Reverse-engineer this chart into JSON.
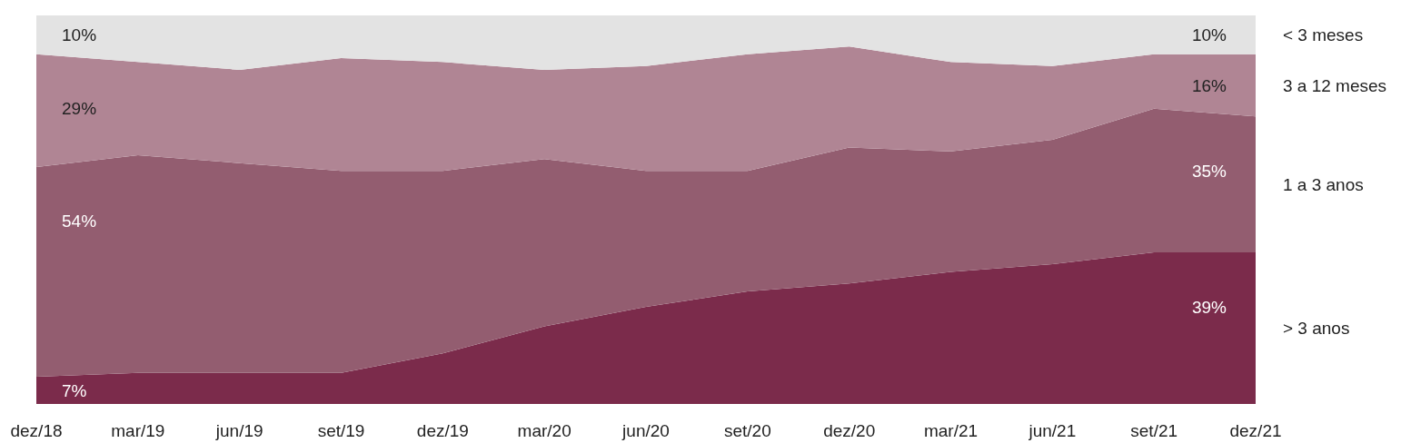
{
  "chart_data": {
    "type": "area",
    "stacked": true,
    "categories": [
      "dez/18",
      "mar/19",
      "jun/19",
      "set/19",
      "dez/19",
      "mar/20",
      "jun/20",
      "set/20",
      "dez/20",
      "mar/21",
      "jun/21",
      "set/21",
      "dez/21"
    ],
    "series": [
      {
        "name": "> 3 anos",
        "color": "#7b2b4b",
        "values": [
          7,
          8,
          8,
          8,
          13,
          20,
          25,
          29,
          31,
          34,
          36,
          39,
          39
        ],
        "value_labels": [
          "7%",
          null,
          null,
          null,
          null,
          null,
          null,
          null,
          null,
          null,
          null,
          null,
          "39%"
        ]
      },
      {
        "name": "1 a 3 anos",
        "color": "#935d70",
        "values": [
          54,
          56,
          54,
          52,
          47,
          43,
          35,
          31,
          35,
          31,
          32,
          37,
          35
        ],
        "value_labels": [
          "54%",
          null,
          null,
          null,
          null,
          null,
          null,
          null,
          null,
          null,
          null,
          null,
          "35%"
        ]
      },
      {
        "name": "3 a 12 meses",
        "color": "#b08594",
        "values": [
          29,
          24,
          24,
          29,
          28,
          23,
          27,
          30,
          26,
          23,
          19,
          14,
          16
        ],
        "value_labels": [
          "29%",
          null,
          null,
          null,
          null,
          null,
          null,
          null,
          null,
          null,
          null,
          null,
          "16%"
        ]
      },
      {
        "name": "< 3 meses",
        "color": "#e3e3e3",
        "values": [
          10,
          12,
          14,
          11,
          12,
          14,
          13,
          10,
          8,
          12,
          13,
          10,
          10
        ],
        "value_labels": [
          "10%",
          null,
          null,
          null,
          null,
          null,
          null,
          null,
          null,
          null,
          null,
          null,
          "10%"
        ]
      }
    ]
  }
}
